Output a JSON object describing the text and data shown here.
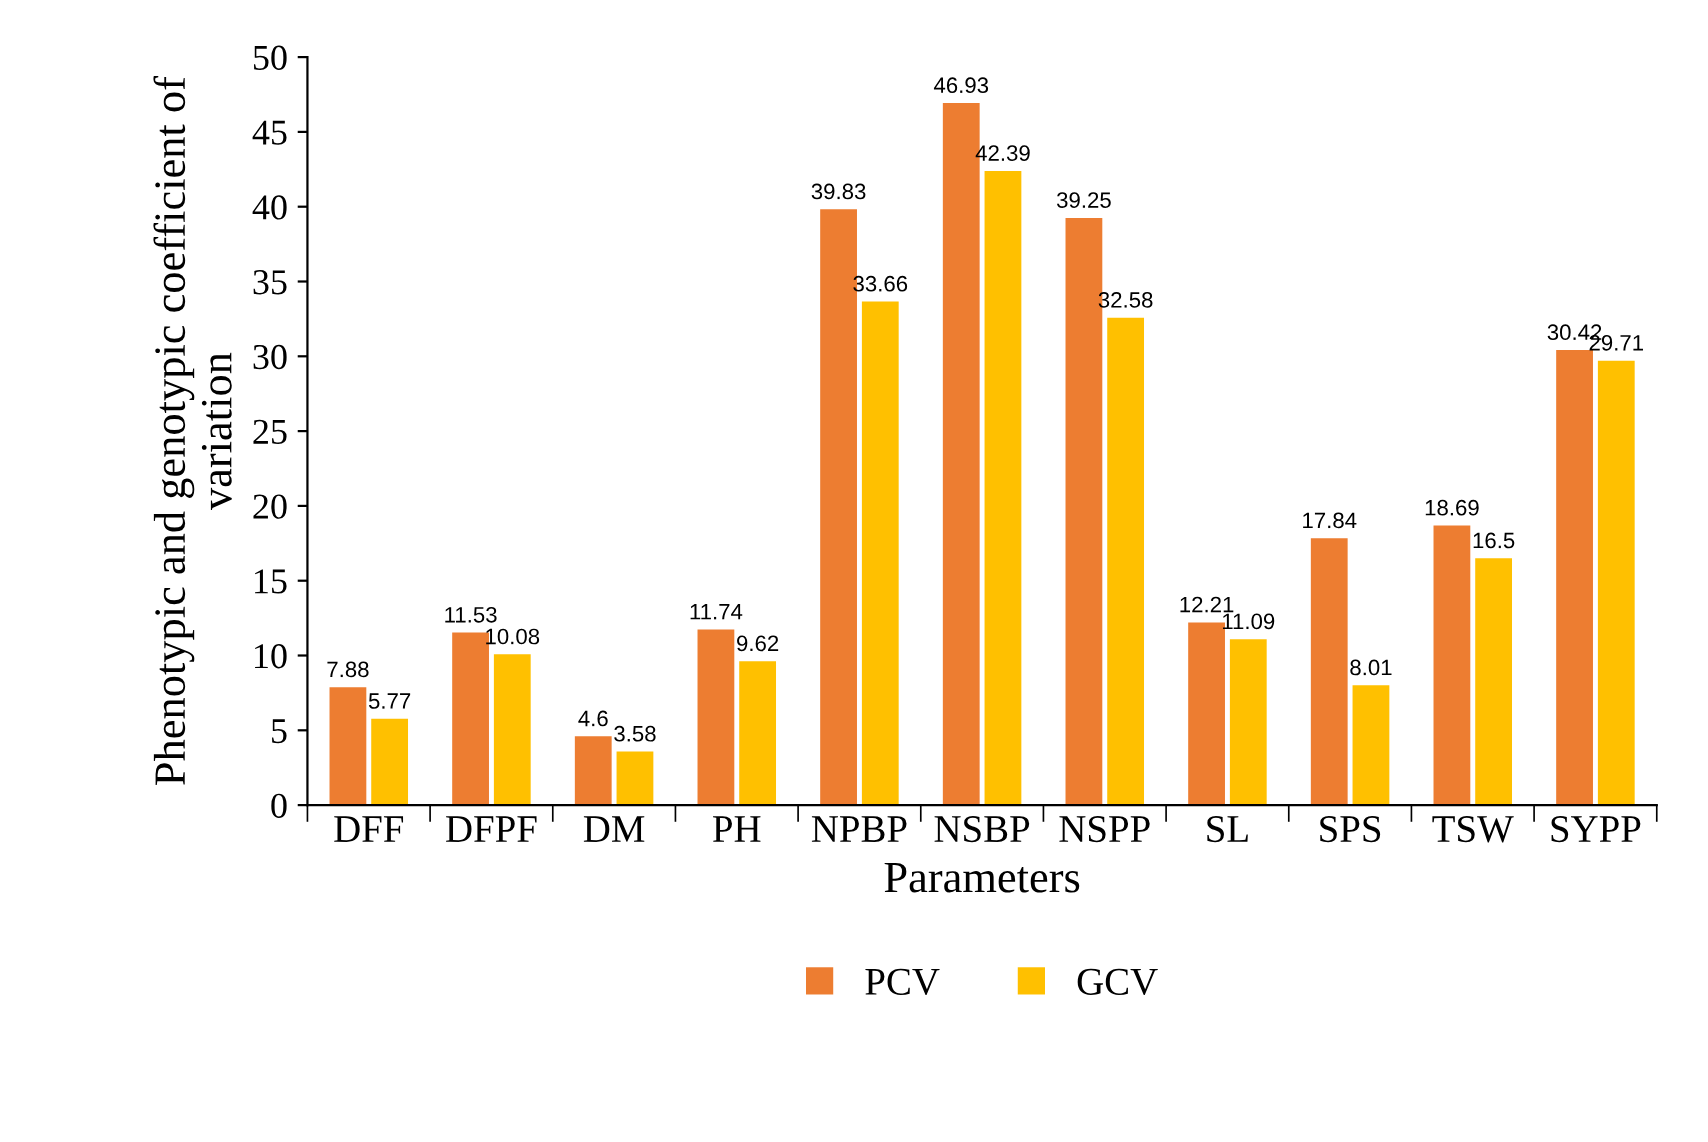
{
  "chart_data": {
    "type": "bar",
    "xlabel": "Parameters",
    "ylabel": "Phenotypic and genotypic coefficient of variation",
    "categories": [
      "DFF",
      "DFPF",
      "DM",
      "PH",
      "NPBP",
      "NSBP",
      "NSPP",
      "SL",
      "SPS",
      "TSW",
      "SYPP"
    ],
    "series": [
      {
        "name": "PCV",
        "color": "#ed7d31",
        "values": [
          7.88,
          11.53,
          4.6,
          11.74,
          39.83,
          46.93,
          39.25,
          12.21,
          17.84,
          18.69,
          30.42
        ]
      },
      {
        "name": "GCV",
        "color": "#ffc000",
        "values": [
          5.77,
          10.08,
          3.58,
          9.62,
          33.66,
          42.39,
          32.58,
          11.09,
          8.01,
          16.5,
          29.71
        ]
      }
    ],
    "ylim": [
      0,
      50
    ],
    "yticks": [
      0,
      5,
      10,
      15,
      20,
      25,
      30,
      35,
      40,
      45,
      50
    ],
    "grid": false,
    "legend": "bottom",
    "data_labels": true
  }
}
